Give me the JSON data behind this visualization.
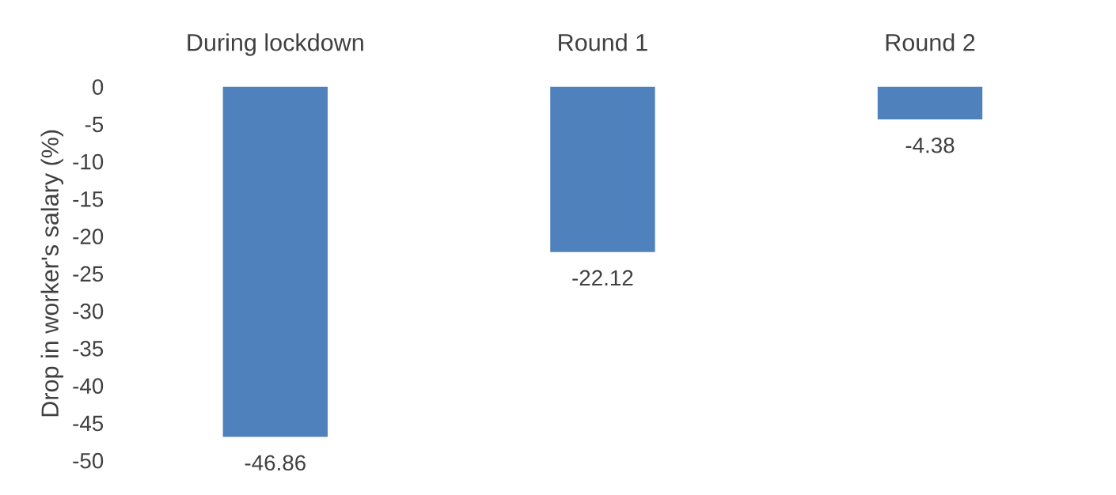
{
  "chart_data": {
    "type": "bar",
    "ylabel": "Drop in worker's salary (%)",
    "categories": [
      "During lockdown",
      "Round 1",
      "Round 2"
    ],
    "values": [
      -46.86,
      -22.12,
      -4.38
    ],
    "color": "#4f81bd",
    "ylim": [
      -50,
      0
    ],
    "yticks": [
      -50,
      -45,
      -40,
      -35,
      -30,
      -25,
      -20,
      -15,
      -10,
      -5,
      0
    ],
    "data_labels": true,
    "grid": false,
    "legend": false
  }
}
